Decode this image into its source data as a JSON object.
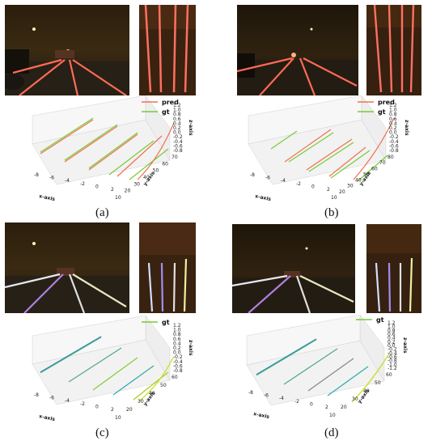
{
  "figure": {
    "panels": [
      {
        "id": "a",
        "caption": "(a)",
        "style": "red",
        "legend": [
          "pred",
          "gt"
        ],
        "axes": {
          "x_label": "x-axis",
          "y_label": "y-axis",
          "z_label": "z-axis",
          "x_ticks": [
            "-8",
            "-6",
            "-4",
            "-2",
            "0",
            "2"
          ],
          "y_ticks": [
            "10",
            "20",
            "30",
            "40",
            "50",
            "60",
            "70"
          ],
          "z_ticks": [
            "1.2",
            "1.0",
            "0.8",
            "0.6",
            "0.4",
            "0.2",
            "0.0",
            "-0.2",
            "-0.4",
            "-0.6",
            "-0.8"
          ]
        }
      },
      {
        "id": "b",
        "caption": "(b)",
        "style": "red",
        "legend": [
          "pred",
          "gt"
        ],
        "axes": {
          "x_label": "x-axis",
          "y_label": "y-axis",
          "z_label": "z-axis",
          "x_ticks": [
            "-8",
            "-6",
            "-4",
            "-2",
            "0",
            "2"
          ],
          "y_ticks": [
            "10",
            "20",
            "30",
            "40",
            "50",
            "60",
            "70",
            "80"
          ],
          "z_ticks": [
            "1.2",
            "1.0",
            "0.8",
            "0.6",
            "0.4",
            "0.2",
            "0.0",
            "-0.2",
            "-0.4",
            "-0.6",
            "-0.8"
          ]
        }
      },
      {
        "id": "c",
        "caption": "(c)",
        "style": "multi",
        "legend": [
          "gt"
        ],
        "axes": {
          "x_label": "x-axis",
          "y_label": "y-axis",
          "z_label": "z-axis",
          "x_ticks": [
            "-8",
            "-6",
            "-4",
            "-2",
            "0",
            "2"
          ],
          "y_ticks": [
            "10",
            "20",
            "30",
            "40",
            "50",
            "60"
          ],
          "z_ticks": [
            "1.2",
            "1.0",
            "0.8",
            "0.6",
            "0.4",
            "0.2",
            "0.0",
            "-0.2",
            "-0.4",
            "-0.6",
            "-0.8"
          ]
        }
      },
      {
        "id": "d",
        "caption": "(d)",
        "style": "multi",
        "legend": [
          "gt"
        ],
        "axes": {
          "x_label": "x-axis",
          "y_label": "y-axis",
          "z_label": "z-axis",
          "x_ticks": [
            "-8",
            "-6",
            "-4",
            "-2",
            "0",
            "2"
          ],
          "y_ticks": [
            "10",
            "20",
            "30",
            "40",
            "50",
            "60"
          ],
          "z_ticks": [
            "1.2",
            "1.0",
            "0.8",
            "0.6",
            "0.4",
            "0.2",
            "0.0",
            "-0.2",
            "-0.4",
            "-0.6",
            "-0.8",
            "-1.0",
            "-1.2"
          ]
        }
      }
    ],
    "colors": {
      "pred": "#f07050",
      "gt": "#77cc33",
      "night_sky": "#1a1208",
      "road": "#2a2418"
    }
  }
}
